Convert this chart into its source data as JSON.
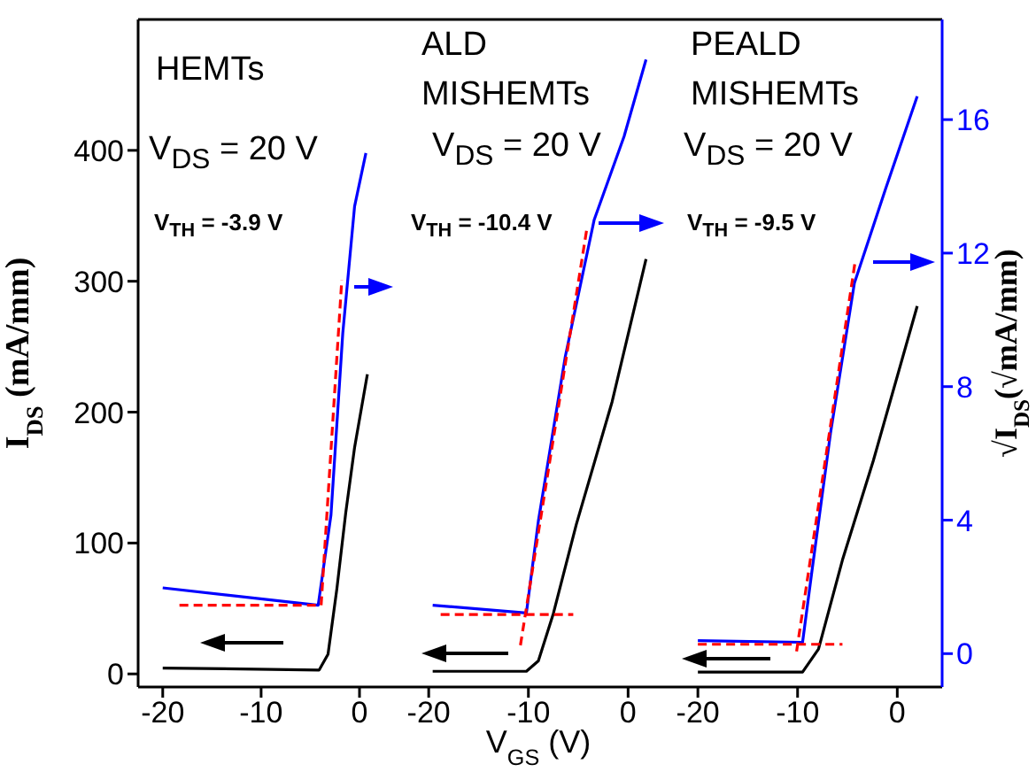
{
  "chart_data": [
    {
      "type": "line",
      "title": "HEMTs",
      "annotations": [
        "V$_{DS}$ = 20 V",
        "V$_{TH}$ = -3.9 V"
      ],
      "ylabel": "I$_{DS}$ (mA/mm)",
      "xlim": [
        -22.5,
        4.5
      ],
      "xticks": [
        -20,
        -10,
        0
      ],
      "ylim": [
        -10,
        500
      ],
      "yticks": [
        0,
        100,
        200,
        300,
        400
      ],
      "y2lim": [
        -1,
        19
      ],
      "marker": "none",
      "series": [
        {
          "color": "#000000",
          "x": [
            -20,
            -4.1,
            -3.2,
            -2.3,
            -1.4,
            -0.5,
            0.8
          ],
          "values": [
            4.5,
            3,
            15,
            65,
            123,
            173,
            229
          ]
        },
        {
          "color": "#0000ff",
          "axis": "y2",
          "x": [
            -20,
            -4.2,
            -2.9,
            -1.7,
            -0.5,
            0.65
          ],
          "values": [
            1.97,
            1.45,
            4.15,
            9.6,
            13.4,
            15.0
          ]
        },
        {
          "color": "#ff0000",
          "axis": "y2",
          "line_style": "dashed",
          "x": [
            -18.3,
            -3.9
          ],
          "values": [
            1.45,
            1.45
          ]
        },
        {
          "color": "#ff0000",
          "axis": "y2",
          "line_style": "dashed",
          "x": [
            -3.9,
            -1.8
          ],
          "values": [
            1.45,
            11.2
          ]
        }
      ]
    },
    {
      "type": "line",
      "title": "ALD MISHEMTs",
      "annotations": [
        "V$_{DS}$ = 20 V",
        "V$_{TH}$ = -10.4 V"
      ],
      "xlabel": "V$_{GS}$ (V)",
      "xlim": [
        -22.5,
        4.5
      ],
      "xticks": [
        -20,
        -10,
        0
      ],
      "ylim": [
        -10,
        500
      ],
      "y2lim": [
        -1,
        19
      ],
      "marker": "none",
      "series": [
        {
          "color": "#000000",
          "x": [
            -19.6,
            -10.2,
            -9.0,
            -7.5,
            -5.2,
            -1.6,
            1.8
          ],
          "values": [
            2,
            2,
            10,
            46,
            114,
            208,
            317
          ]
        },
        {
          "color": "#0000ff",
          "axis": "y2",
          "x": [
            -19.6,
            -10.2,
            -9.0,
            -6.3,
            -3.4,
            -0.4,
            1.8
          ],
          "values": [
            1.45,
            1.22,
            3.97,
            8.9,
            13.0,
            15.5,
            17.8
          ]
        },
        {
          "color": "#ff0000",
          "axis": "y2",
          "line_style": "dashed",
          "x": [
            -18.8,
            -5.5
          ],
          "values": [
            1.17,
            1.17
          ]
        },
        {
          "color": "#ff0000",
          "axis": "y2",
          "line_style": "dashed",
          "x": [
            -10.8,
            -4.1
          ],
          "values": [
            0.25,
            12.8
          ]
        }
      ]
    },
    {
      "type": "line",
      "title": "PEALD MISHEMTs",
      "annotations": [
        "V$_{DS}$ = 20 V",
        "V$_{TH}$ = -9.5 V"
      ],
      "y2label": "√I$_{DS}$(√mA/mm)",
      "xlim": [
        -22.5,
        4.5
      ],
      "xticks": [
        -20,
        -10,
        0
      ],
      "ylim": [
        -10,
        500
      ],
      "y2lim": [
        -1,
        19
      ],
      "y2ticks": [
        0,
        4,
        8,
        12,
        16
      ],
      "marker": "none",
      "series": [
        {
          "color": "#000000",
          "x": [
            -20,
            -9.5,
            -7.9,
            -5.5,
            -2.4,
            2.0
          ],
          "values": [
            1.4,
            1.4,
            19,
            87,
            163,
            281
          ]
        },
        {
          "color": "#0000ff",
          "axis": "y2",
          "x": [
            -20,
            -9.5,
            -8.6,
            -6.7,
            -4.3,
            -1.2,
            2.0
          ],
          "values": [
            0.39,
            0.34,
            2.38,
            6.6,
            11.1,
            13.9,
            16.7
          ]
        },
        {
          "color": "#ff0000",
          "axis": "y2",
          "line_style": "dashed",
          "x": [
            -20,
            -5.5
          ],
          "values": [
            0.28,
            0.28
          ]
        },
        {
          "color": "#ff0000",
          "axis": "y2",
          "line_style": "dashed",
          "x": [
            -10.1,
            -4.2
          ],
          "values": [
            0.07,
            11.8
          ]
        }
      ]
    }
  ]
}
